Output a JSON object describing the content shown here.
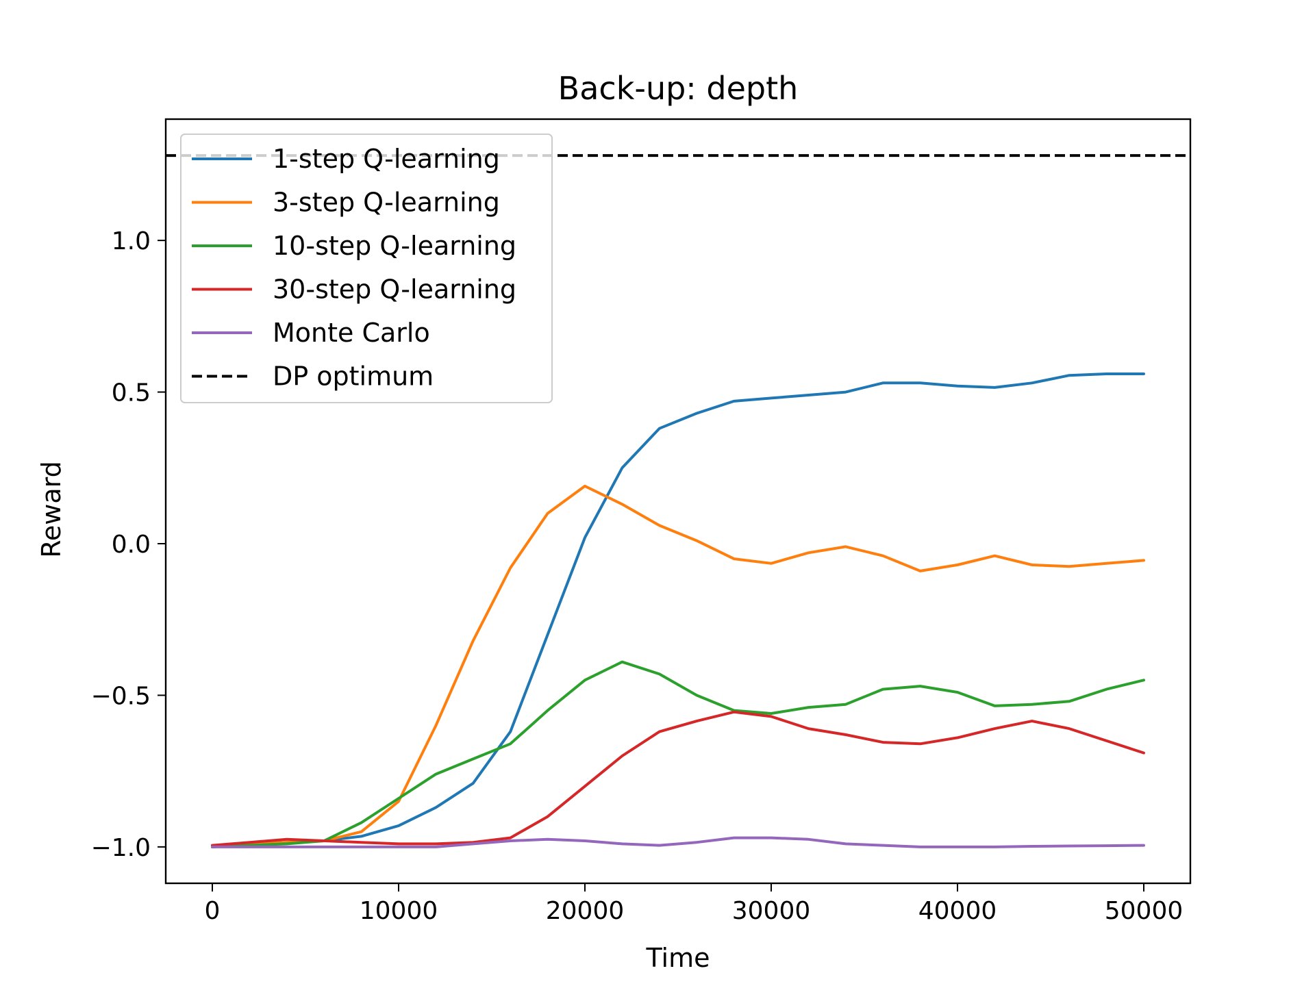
{
  "chart_data": {
    "type": "line",
    "title": "Back-up: depth",
    "xlabel": "Time",
    "ylabel": "Reward",
    "xlim": [
      -2500,
      52500
    ],
    "ylim": [
      -1.12,
      1.4
    ],
    "xticks": [
      0,
      10000,
      20000,
      30000,
      40000,
      50000
    ],
    "xtick_labels": [
      "0",
      "10000",
      "20000",
      "30000",
      "40000",
      "50000"
    ],
    "yticks": [
      -1.0,
      -0.5,
      0.0,
      0.5,
      1.0
    ],
    "ytick_labels": [
      "−1.0",
      "−0.5",
      "0.0",
      "0.5",
      "1.0"
    ],
    "grid": false,
    "legend_position": "top-left",
    "x": [
      0,
      2000,
      4000,
      6000,
      8000,
      10000,
      12000,
      14000,
      16000,
      18000,
      20000,
      22000,
      24000,
      26000,
      28000,
      30000,
      32000,
      34000,
      36000,
      38000,
      40000,
      42000,
      44000,
      46000,
      48000,
      50000
    ],
    "series": [
      {
        "name": "1-step Q-learning",
        "color": "#1f77b4",
        "values": [
          -1.0,
          -0.99,
          -0.985,
          -0.98,
          -0.965,
          -0.93,
          -0.87,
          -0.79,
          -0.62,
          -0.3,
          0.02,
          0.25,
          0.38,
          0.43,
          0.47,
          0.48,
          0.49,
          0.5,
          0.53,
          0.53,
          0.52,
          0.515,
          0.53,
          0.555,
          0.56,
          0.56
        ]
      },
      {
        "name": "3-step Q-learning",
        "color": "#ff7f0e",
        "values": [
          -1.0,
          -0.99,
          -0.985,
          -0.98,
          -0.95,
          -0.85,
          -0.6,
          -0.32,
          -0.08,
          0.1,
          0.19,
          0.13,
          0.06,
          0.01,
          -0.05,
          -0.065,
          -0.03,
          -0.01,
          -0.04,
          -0.09,
          -0.07,
          -0.04,
          -0.07,
          -0.075,
          -0.065,
          -0.055
        ]
      },
      {
        "name": "10-step Q-learning",
        "color": "#2ca02c",
        "values": [
          -1.0,
          -0.995,
          -0.99,
          -0.98,
          -0.92,
          -0.84,
          -0.76,
          -0.71,
          -0.66,
          -0.55,
          -0.45,
          -0.39,
          -0.43,
          -0.5,
          -0.55,
          -0.56,
          -0.54,
          -0.53,
          -0.48,
          -0.47,
          -0.49,
          -0.535,
          -0.53,
          -0.52,
          -0.48,
          -0.45
        ]
      },
      {
        "name": "30-step Q-learning",
        "color": "#d62728",
        "values": [
          -0.995,
          -0.985,
          -0.975,
          -0.98,
          -0.985,
          -0.99,
          -0.99,
          -0.985,
          -0.97,
          -0.9,
          -0.8,
          -0.7,
          -0.62,
          -0.585,
          -0.555,
          -0.57,
          -0.61,
          -0.63,
          -0.655,
          -0.66,
          -0.64,
          -0.61,
          -0.585,
          -0.61,
          -0.65,
          -0.69
        ]
      },
      {
        "name": "Monte Carlo",
        "color": "#9467bd",
        "values": [
          -1.0,
          -1.0,
          -1.0,
          -1.0,
          -1.0,
          -1.0,
          -1.0,
          -0.99,
          -0.98,
          -0.975,
          -0.98,
          -0.99,
          -0.995,
          -0.985,
          -0.97,
          -0.97,
          -0.975,
          -0.99,
          -0.995,
          -1.0,
          -1.0,
          -1.0,
          -0.998,
          -0.997,
          -0.996,
          -0.995
        ]
      }
    ],
    "reference_line": {
      "name": "DP optimum",
      "color": "#000000",
      "y": 1.28,
      "style": "dashed"
    }
  }
}
